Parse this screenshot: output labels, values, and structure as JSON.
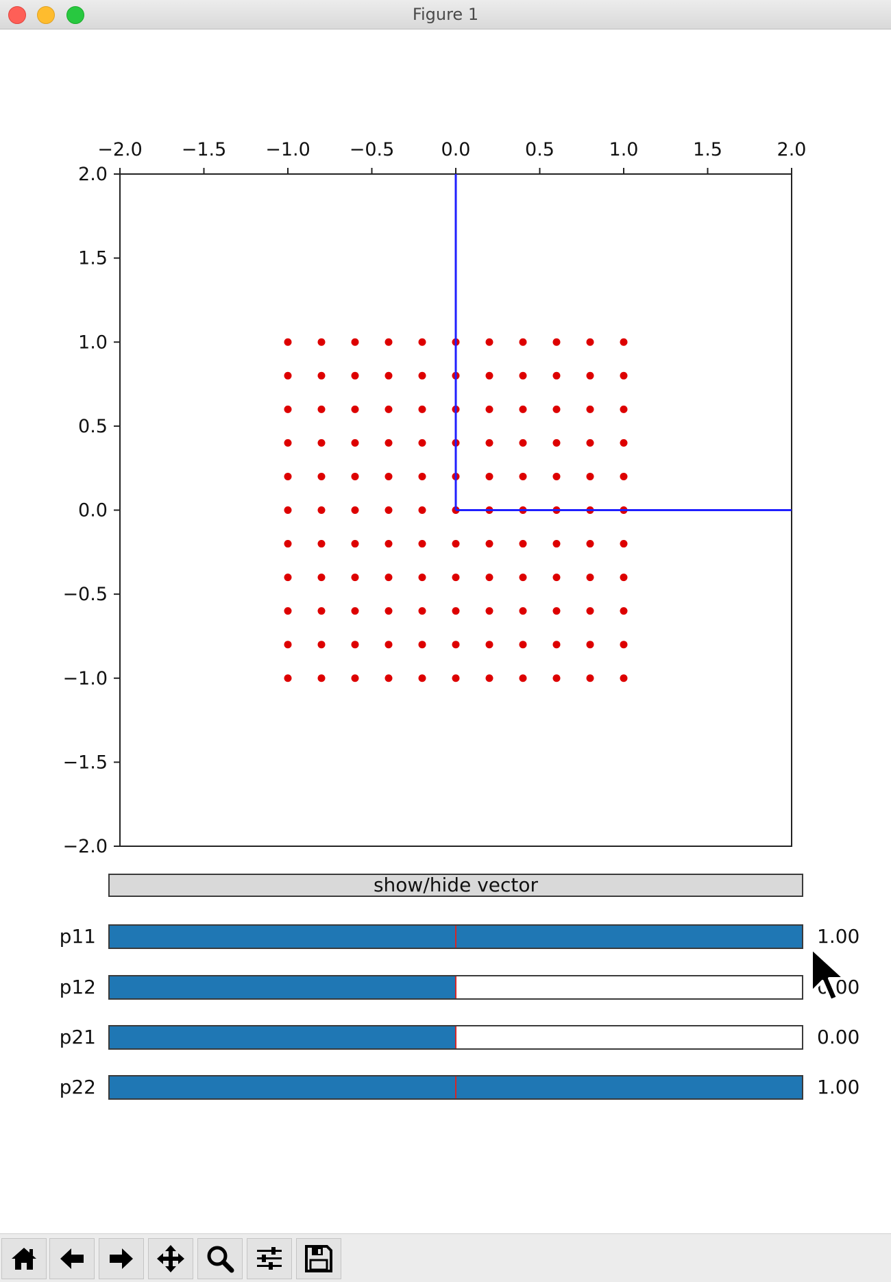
{
  "window": {
    "title": "Figure 1"
  },
  "chart_data": {
    "type": "scatter",
    "xlim": [
      -2.0,
      2.0
    ],
    "ylim": [
      -2.0,
      2.0
    ],
    "x_ticks": [
      "−2.0",
      "−1.5",
      "−1.0",
      "−0.5",
      "0.0",
      "0.5",
      "1.0",
      "1.5",
      "2.0"
    ],
    "x_tick_values": [
      -2.0,
      -1.5,
      -1.0,
      -0.5,
      0.0,
      0.5,
      1.0,
      1.5,
      2.0
    ],
    "y_ticks": [
      "2.0",
      "1.5",
      "1.0",
      "0.5",
      "0.0",
      "−0.5",
      "−1.0",
      "−1.5",
      "−2.0"
    ],
    "y_tick_values": [
      2.0,
      1.5,
      1.0,
      0.5,
      0.0,
      -0.5,
      -1.0,
      -1.5,
      -2.0
    ],
    "x_axis_position": "top",
    "grid": false,
    "series": [
      {
        "kind": "points",
        "color": "#dd0000",
        "x_values": [
          -1.0,
          -0.8,
          -0.6,
          -0.4,
          -0.2,
          0.0,
          0.2,
          0.4,
          0.6,
          0.8,
          1.0
        ],
        "y_values": [
          1.0,
          0.8,
          0.6,
          0.4,
          0.2,
          0.0,
          -0.2,
          -0.4,
          -0.6,
          -0.8,
          -1.0
        ],
        "layout": "grid"
      },
      {
        "kind": "vectors",
        "color": "#1f1fff",
        "vectors": [
          {
            "x0": 0,
            "y0": 0,
            "x1": 0,
            "y1": 2.0
          },
          {
            "x0": 0,
            "y0": 0,
            "x1": 2.0,
            "y1": 0
          }
        ]
      }
    ]
  },
  "controls": {
    "vector_button_label": "show/hide vector",
    "sliders": [
      {
        "label": "p11",
        "value": 1.0,
        "fill": 1.0,
        "value_text": "1.00"
      },
      {
        "label": "p12",
        "value": 0.0,
        "fill": 0.5,
        "value_text": "0.00"
      },
      {
        "label": "p21",
        "value": 0.0,
        "fill": 0.5,
        "value_text": "0.00"
      },
      {
        "label": "p22",
        "value": 1.0,
        "fill": 1.0,
        "value_text": "1.00"
      }
    ]
  },
  "toolbar": {
    "buttons": [
      "home-icon",
      "back-icon",
      "forward-icon",
      "pan-icon",
      "zoom-icon",
      "configure-icon",
      "save-icon"
    ]
  }
}
